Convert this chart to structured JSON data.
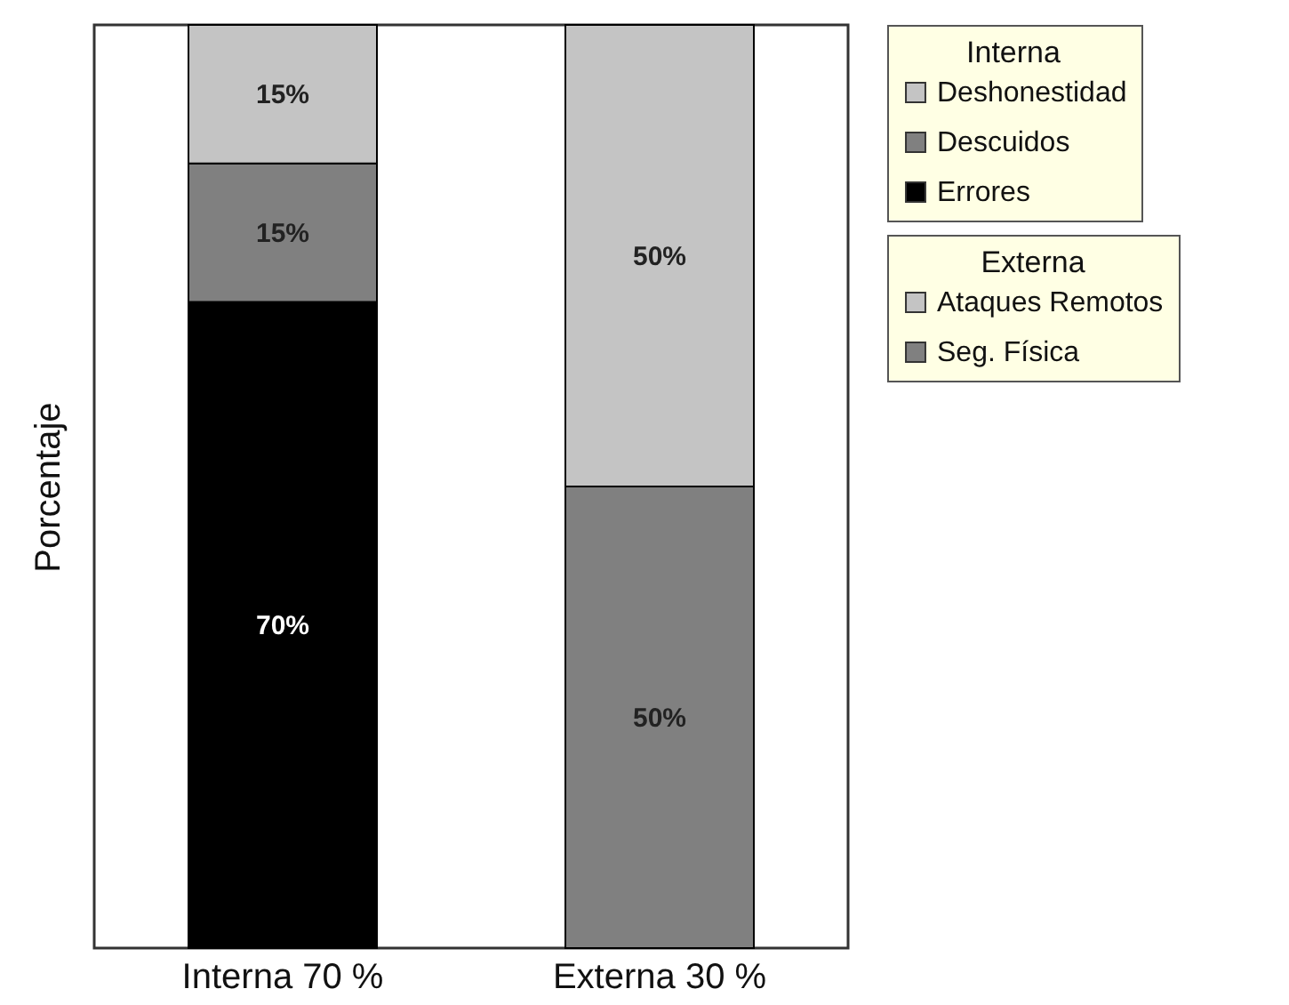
{
  "chart_data": {
    "type": "bar",
    "stacked": true,
    "tick_labels": "x",
    "ylabel": "Porcentaje",
    "categories": [
      "Interna 70 %",
      "Externa 30 %"
    ],
    "legend": "right",
    "legend_title": [
      "Interna",
      "Externa"
    ],
    "series": [
      {
        "name": "Errores",
        "color": "#000000",
        "values": [
          70,
          null
        ],
        "value_labels": [
          "70%",
          null
        ]
      },
      {
        "name": "Descuidos",
        "color": "#808080",
        "values": [
          15,
          null
        ],
        "value_labels": [
          "15%",
          null
        ]
      },
      {
        "name": "Deshonestidad",
        "color": "#c4c4c4",
        "values": [
          15,
          null
        ],
        "value_labels": [
          "15%",
          null
        ]
      },
      {
        "name": "Seg. Física",
        "color": "#808080",
        "values": [
          null,
          50
        ],
        "value_labels": [
          null,
          "50%"
        ]
      },
      {
        "name": "Ataques Remotos",
        "color": "#c4c4c4",
        "values": [
          null,
          50
        ],
        "value_labels": [
          null,
          "50%"
        ]
      }
    ]
  }
}
